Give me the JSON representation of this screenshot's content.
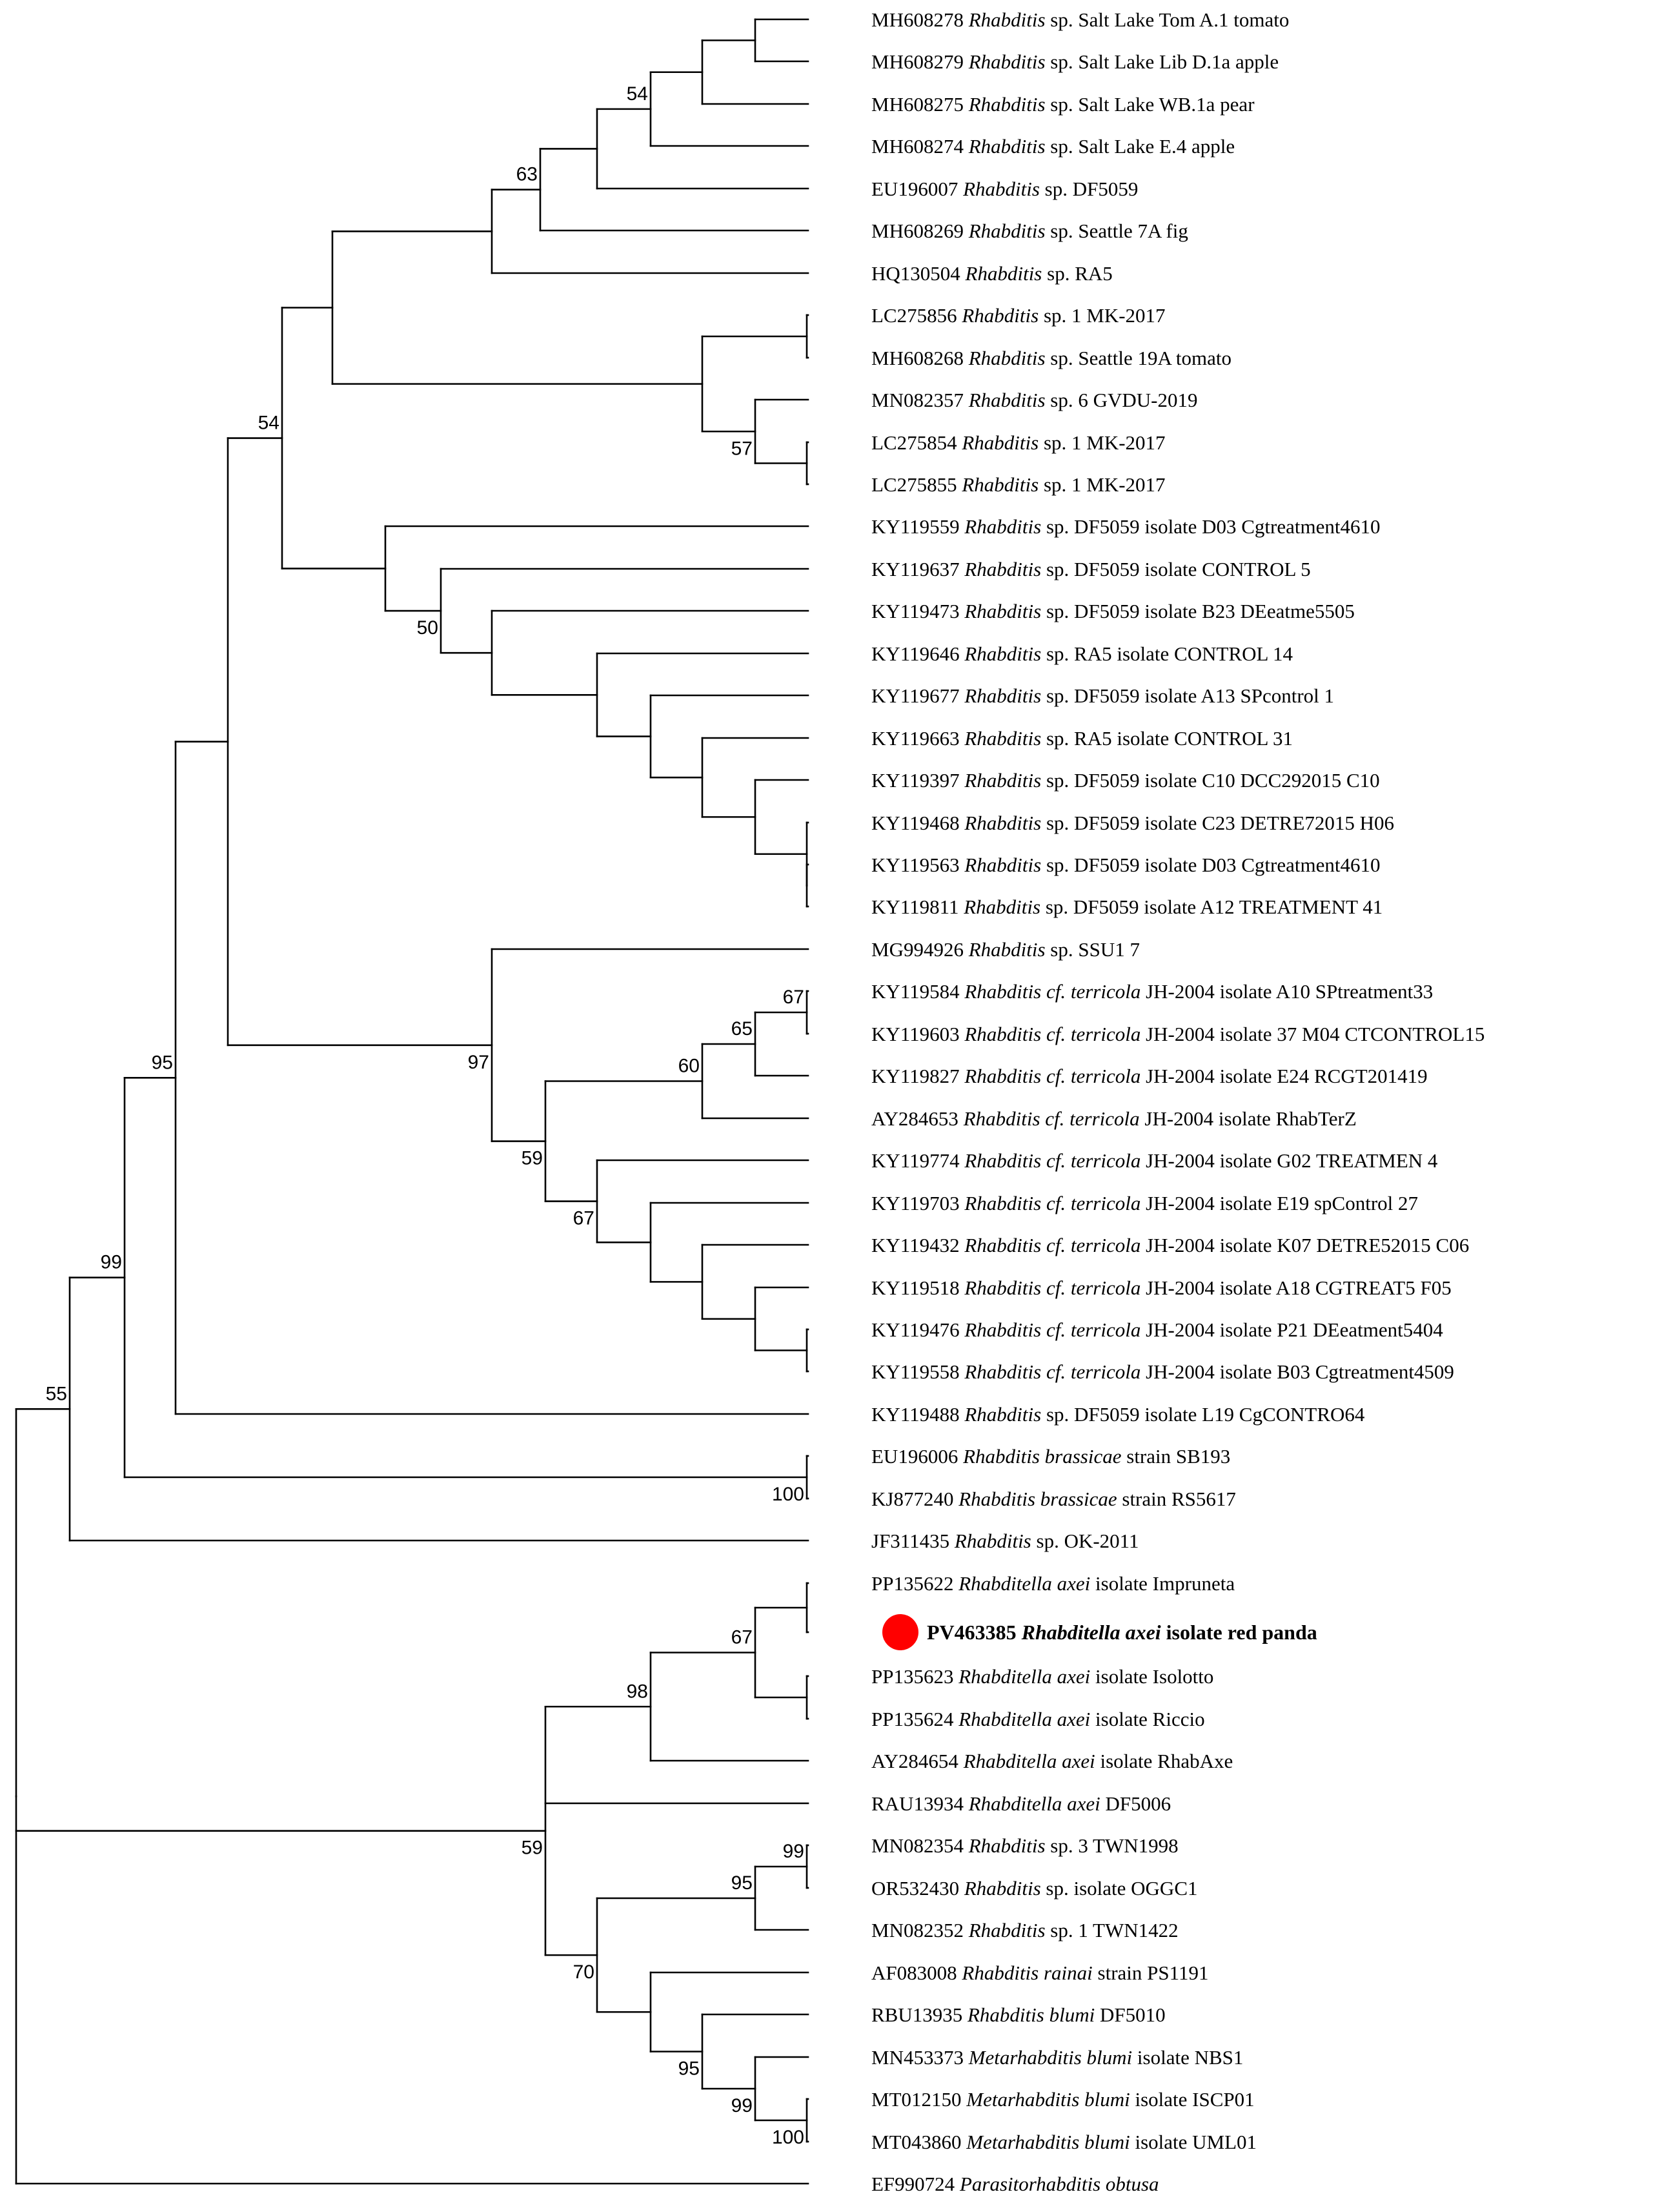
{
  "figure": {
    "type": "phylogenetic-tree",
    "highlight_color": "#ff0000",
    "line_color": "#000000"
  },
  "tips": [
    {
      "acc": "MH608278",
      "genus": "Rhabditis",
      "name_rest": " sp.",
      "suffix": " Salt Lake Tom A.1 tomato"
    },
    {
      "acc": "MH608279",
      "genus": "Rhabditis",
      "name_rest": " sp.",
      "suffix": " Salt Lake Lib D.1a apple"
    },
    {
      "acc": "MH608275",
      "genus": "Rhabditis",
      "name_rest": " sp.",
      "suffix": " Salt Lake WB.1a pear"
    },
    {
      "acc": "MH608274",
      "genus": "Rhabditis",
      "name_rest": " sp.",
      "suffix": " Salt Lake E.4 apple"
    },
    {
      "acc": "EU196007",
      "genus": "Rhabditis",
      "name_rest": " sp.",
      "suffix": " DF5059"
    },
    {
      "acc": "MH608269",
      "genus": "Rhabditis",
      "name_rest": " sp.",
      "suffix": " Seattle 7A fig"
    },
    {
      "acc": "HQ130504",
      "genus": "Rhabditis",
      "name_rest": " sp.",
      "suffix": " RA5"
    },
    {
      "acc": "LC275856",
      "genus": "Rhabditis",
      "name_rest": " sp.",
      "suffix": " 1 MK-2017"
    },
    {
      "acc": "MH608268",
      "genus": "Rhabditis",
      "name_rest": " sp.",
      "suffix": " Seattle 19A tomato"
    },
    {
      "acc": "MN082357",
      "genus": "Rhabditis",
      "name_rest": " sp.",
      "suffix": " 6 GVDU-2019"
    },
    {
      "acc": "LC275854",
      "genus": "Rhabditis",
      "name_rest": " sp.",
      "suffix": " 1 MK-2017"
    },
    {
      "acc": "LC275855",
      "genus": "Rhabditis",
      "name_rest": " sp.",
      "suffix": " 1 MK-2017"
    },
    {
      "acc": "KY119559",
      "genus": "Rhabditis",
      "name_rest": " sp.",
      "suffix": " DF5059 isolate D03 Cgtreatment4610"
    },
    {
      "acc": "KY119637",
      "genus": "Rhabditis",
      "name_rest": " sp.",
      "suffix": " DF5059 isolate CONTROL 5"
    },
    {
      "acc": "KY119473",
      "genus": "Rhabditis",
      "name_rest": " sp.",
      "suffix": " DF5059 isolate B23 DEeatme5505"
    },
    {
      "acc": "KY119646",
      "genus": "Rhabditis",
      "name_rest": " sp.",
      "suffix": " RA5 isolate CONTROL 14"
    },
    {
      "acc": "KY119677",
      "genus": "Rhabditis",
      "name_rest": " sp.",
      "suffix": " DF5059 isolate A13 SPcontrol 1"
    },
    {
      "acc": "KY119663",
      "genus": "Rhabditis",
      "name_rest": " sp.",
      "suffix": " RA5 isolate CONTROL 31"
    },
    {
      "acc": "KY119397",
      "genus": "Rhabditis",
      "name_rest": " sp.",
      "suffix": " DF5059 isolate C10 DCC292015 C10"
    },
    {
      "acc": "KY119468",
      "genus": "Rhabditis",
      "name_rest": " sp.",
      "suffix": " DF5059 isolate C23 DETRE72015 H06"
    },
    {
      "acc": "KY119563",
      "genus": "Rhabditis",
      "name_rest": " sp.",
      "suffix": " DF5059 isolate D03 Cgtreatment4610"
    },
    {
      "acc": "KY119811",
      "genus": "Rhabditis",
      "name_rest": " sp.",
      "suffix": " DF5059 isolate A12 TREATMENT 41"
    },
    {
      "acc": "MG994926",
      "genus": "Rhabditis",
      "name_rest": " sp.",
      "suffix": " SSU1 7"
    },
    {
      "acc": "KY119584",
      "genus": "Rhabditis cf. terricola",
      "name_rest": "",
      "suffix": " JH-2004 isolate A10 SPtreatment33"
    },
    {
      "acc": "KY119603",
      "genus": "Rhabditis cf. terricola",
      "name_rest": "",
      "suffix": " JH-2004 isolate 37 M04 CTCONTROL15"
    },
    {
      "acc": "KY119827",
      "genus": "Rhabditis cf. terricola",
      "name_rest": "",
      "suffix": " JH-2004 isolate E24 RCGT201419"
    },
    {
      "acc": "AY284653",
      "genus": "Rhabditis cf. terricola",
      "name_rest": "",
      "suffix": " JH-2004 isolate RhabTerZ"
    },
    {
      "acc": "KY119774",
      "genus": "Rhabditis cf. terricola",
      "name_rest": "",
      "suffix": " JH-2004 isolate G02 TREATMEN 4"
    },
    {
      "acc": "KY119703",
      "genus": "Rhabditis cf. terricola",
      "name_rest": "",
      "suffix": " JH-2004 isolate E19 spControl 27"
    },
    {
      "acc": "KY119432",
      "genus": "Rhabditis cf. terricola",
      "name_rest": "",
      "suffix": " JH-2004 isolate K07 DETRE52015 C06"
    },
    {
      "acc": "KY119518",
      "genus": "Rhabditis cf. terricola",
      "name_rest": "",
      "suffix": " JH-2004 isolate A18 CGTREAT5 F05"
    },
    {
      "acc": "KY119476",
      "genus": "Rhabditis cf. terricola",
      "name_rest": "",
      "suffix": " JH-2004 isolate P21 DEeatment5404"
    },
    {
      "acc": "KY119558",
      "genus": "Rhabditis cf. terricola",
      "name_rest": "",
      "suffix": " JH-2004 isolate B03 Cgtreatment4509"
    },
    {
      "acc": "KY119488",
      "genus": "Rhabditis",
      "name_rest": " sp.",
      "suffix": " DF5059 isolate L19 CgCONTRO64"
    },
    {
      "acc": "EU196006",
      "genus": "Rhabditis brassicae",
      "name_rest": "",
      "suffix": " strain SB193"
    },
    {
      "acc": "KJ877240",
      "genus": "Rhabditis brassicae",
      "name_rest": "",
      "suffix": " strain RS5617"
    },
    {
      "acc": "JF311435",
      "genus": "Rhabditis",
      "name_rest": " sp.",
      "suffix": " OK-2011"
    },
    {
      "acc": "PP135622",
      "genus": "Rhabditella axei",
      "name_rest": "",
      "suffix": " isolate Impruneta"
    },
    {
      "acc": "PV463385",
      "genus": "Rhabditella axei",
      "name_rest": "",
      "suffix": " isolate red panda",
      "highlight": true
    },
    {
      "acc": "PP135623",
      "genus": "Rhabditella axei",
      "name_rest": "",
      "suffix": " isolate Isolotto"
    },
    {
      "acc": "PP135624",
      "genus": "Rhabditella axei",
      "name_rest": "",
      "suffix": " isolate Riccio"
    },
    {
      "acc": "AY284654",
      "genus": "Rhabditella axei",
      "name_rest": "",
      "suffix": " isolate RhabAxe"
    },
    {
      "acc": "RAU13934",
      "genus": "Rhabditella axei",
      "name_rest": "",
      "suffix": " DF5006"
    },
    {
      "acc": "MN082354",
      "genus": "Rhabditis",
      "name_rest": " sp.",
      "suffix": " 3 TWN1998"
    },
    {
      "acc": "OR532430",
      "genus": "Rhabditis",
      "name_rest": " sp.",
      "suffix": " isolate OGGC1"
    },
    {
      "acc": "MN082352",
      "genus": "Rhabditis",
      "name_rest": " sp.",
      "suffix": " 1 TWN1422"
    },
    {
      "acc": "AF083008",
      "genus": "Rhabditis rainai",
      "name_rest": "",
      "suffix": " strain PS1191"
    },
    {
      "acc": "RBU13935",
      "genus": "Rhabditis blumi",
      "name_rest": "",
      "suffix": " DF5010"
    },
    {
      "acc": "MN453373",
      "genus": "Metarhabditis blumi",
      "name_rest": "",
      "suffix": " isolate NBS1"
    },
    {
      "acc": "MT012150",
      "genus": "Metarhabditis blumi",
      "name_rest": "",
      "suffix": " isolate ISCP01"
    },
    {
      "acc": "MT043860",
      "genus": "Metarhabditis blumi",
      "name_rest": "",
      "suffix": " isolate UML01"
    },
    {
      "acc": "EF990724",
      "genus": "Parasitorhabditis obtusa",
      "name_rest": "",
      "suffix": ""
    }
  ],
  "bootstraps": [
    "54",
    "63",
    "57",
    "50",
    "54",
    "67",
    "65",
    "60",
    "97",
    "59",
    "67",
    "95",
    "100",
    "99",
    "55",
    "67",
    "98",
    "99",
    "95",
    "59",
    "70",
    "95",
    "99",
    "100"
  ]
}
